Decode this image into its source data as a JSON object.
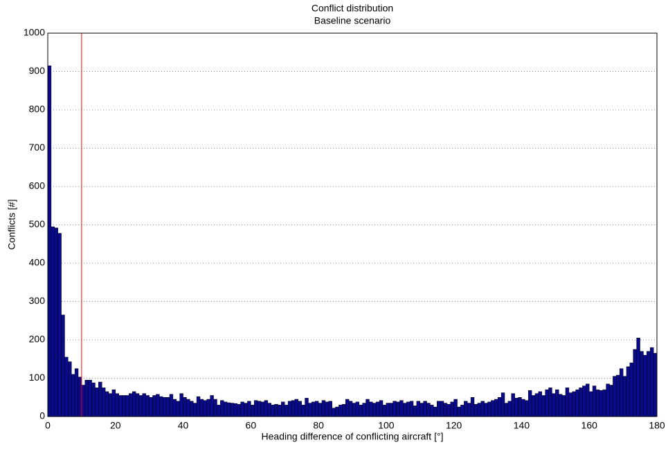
{
  "chart_data": {
    "type": "histogram",
    "title": "Conflict distribution",
    "subtitle": "Baseline scenario",
    "x_label": "Heading difference of conflicting aircraft [°]",
    "y_label": "Conflicts [#]",
    "color": "#0a0a8c",
    "grid": true,
    "marker_line": {
      "x": 10,
      "color": "#ff0000"
    },
    "xlim": [
      0,
      180
    ],
    "xticks": [
      0,
      20,
      40,
      60,
      80,
      100,
      120,
      140,
      160,
      180
    ],
    "ylim": [
      0,
      1000
    ],
    "yticks": [
      0,
      100,
      200,
      300,
      400,
      500,
      600,
      700,
      800,
      900,
      1000
    ],
    "bins": [
      0,
      1,
      2,
      3,
      4,
      5,
      6,
      7,
      8,
      9,
      10,
      11,
      12,
      13,
      14,
      15,
      16,
      17,
      18,
      19,
      20,
      21,
      22,
      23,
      24,
      25,
      26,
      27,
      28,
      29,
      30,
      31,
      32,
      33,
      34,
      35,
      36,
      37,
      38,
      39,
      40,
      41,
      42,
      43,
      44,
      45,
      46,
      47,
      48,
      49,
      50,
      51,
      52,
      53,
      54,
      55,
      56,
      57,
      58,
      59,
      60,
      61,
      62,
      63,
      64,
      65,
      66,
      67,
      68,
      69,
      70,
      71,
      72,
      73,
      74,
      75,
      76,
      77,
      78,
      79,
      80,
      81,
      82,
      83,
      84,
      85,
      86,
      87,
      88,
      89,
      90,
      91,
      92,
      93,
      94,
      95,
      96,
      97,
      98,
      99,
      100,
      101,
      102,
      103,
      104,
      105,
      106,
      107,
      108,
      109,
      110,
      111,
      112,
      113,
      114,
      115,
      116,
      117,
      118,
      119,
      120,
      121,
      122,
      123,
      124,
      125,
      126,
      127,
      128,
      129,
      130,
      131,
      132,
      133,
      134,
      135,
      136,
      137,
      138,
      139,
      140,
      141,
      142,
      143,
      144,
      145,
      146,
      147,
      148,
      149,
      150,
      151,
      152,
      153,
      154,
      155,
      156,
      157,
      158,
      159,
      160,
      161,
      162,
      163,
      164,
      165,
      166,
      167,
      168,
      169,
      170,
      171,
      172,
      173,
      174,
      175,
      176,
      177,
      178,
      179,
      180
    ],
    "values": [
      915,
      495,
      492,
      478,
      265,
      155,
      143,
      110,
      125,
      103,
      82,
      95,
      95,
      88,
      75,
      90,
      75,
      65,
      60,
      70,
      60,
      55,
      55,
      55,
      60,
      65,
      60,
      55,
      60,
      55,
      50,
      55,
      58,
      52,
      50,
      50,
      58,
      45,
      40,
      60,
      50,
      45,
      40,
      35,
      52,
      45,
      42,
      45,
      55,
      45,
      30,
      42,
      38,
      36,
      35,
      34,
      32,
      38,
      35,
      40,
      30,
      42,
      40,
      38,
      42,
      35,
      30,
      32,
      30,
      38,
      30,
      40,
      42,
      45,
      40,
      30,
      48,
      35,
      38,
      40,
      35,
      42,
      38,
      40,
      22,
      25,
      30,
      32,
      45,
      40,
      35,
      38,
      30,
      35,
      45,
      38,
      35,
      38,
      42,
      30,
      35,
      35,
      40,
      38,
      42,
      35,
      38,
      40,
      28,
      40,
      35,
      40,
      35,
      30,
      25,
      40,
      40,
      35,
      32,
      38,
      45,
      25,
      30,
      40,
      35,
      50,
      32,
      35,
      40,
      35,
      38,
      42,
      45,
      50,
      62,
      35,
      40,
      60,
      48,
      50,
      45,
      42,
      68,
      55,
      60,
      65,
      55,
      70,
      75,
      60,
      70,
      58,
      55,
      75,
      62,
      65,
      70,
      75,
      80,
      85,
      65,
      80,
      70,
      68,
      70,
      85,
      82,
      105,
      108,
      125,
      105,
      130,
      140,
      175,
      205,
      170,
      160,
      170,
      180,
      165
    ]
  }
}
